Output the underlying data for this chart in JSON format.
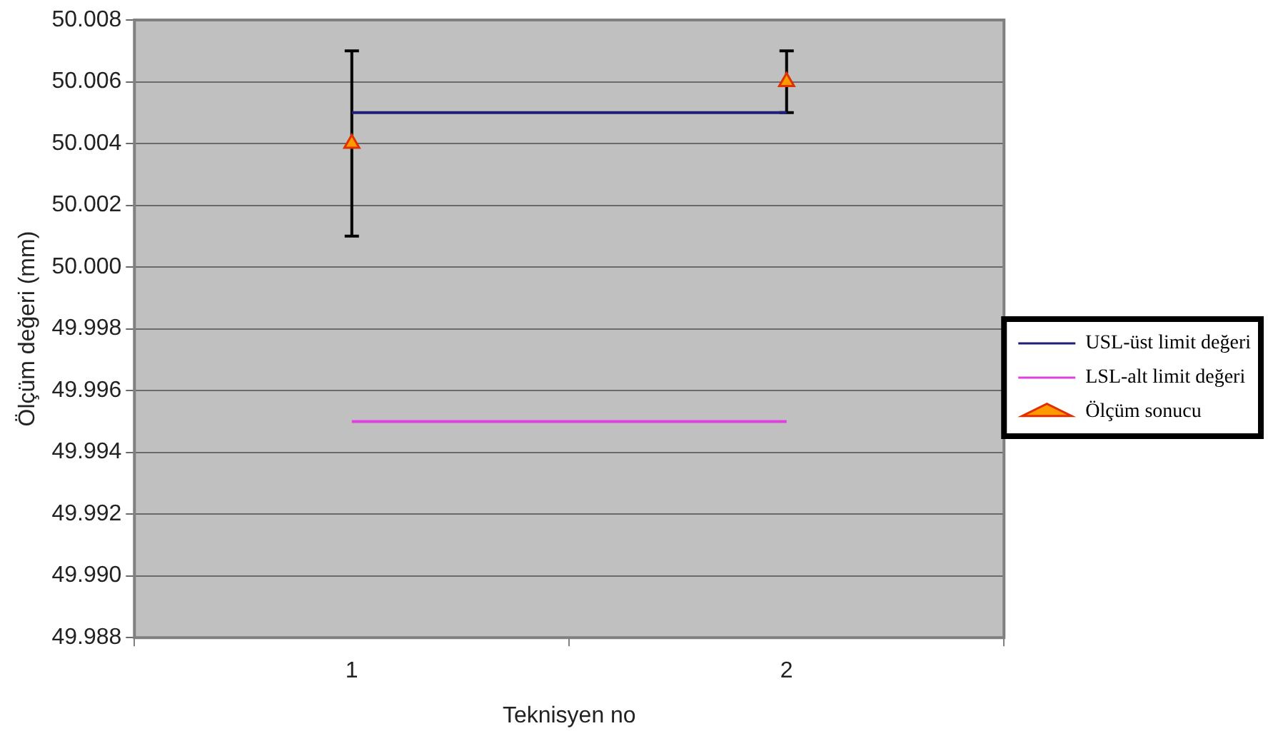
{
  "chart_data": {
    "type": "line",
    "xlabel": "Teknisyen no",
    "ylabel": "Ölçüm değeri (mm)",
    "categories": [
      "1",
      "2"
    ],
    "series": [
      {
        "name": "USL-üst limit değeri",
        "color": "#1f1f7a",
        "marker": "none",
        "values": [
          50.005,
          50.005
        ]
      },
      {
        "name": "LSL-alt limit değeri",
        "color": "#e040e0",
        "marker": "none",
        "values": [
          49.995,
          49.995
        ]
      },
      {
        "name": "Ölçüm sonucu",
        "type": "scatter",
        "color": "#ff9900",
        "marker": "triangle",
        "values": [
          50.004,
          50.006
        ],
        "errors": [
          [
            50.001,
            50.007
          ],
          [
            50.005,
            50.007
          ]
        ]
      }
    ],
    "ylim": [
      49.988,
      50.008
    ],
    "yticks": [
      {
        "value": 49.988,
        "label": "49.988"
      },
      {
        "value": 49.99,
        "label": "49.990"
      },
      {
        "value": 49.992,
        "label": "49.992"
      },
      {
        "value": 49.994,
        "label": "49.994"
      },
      {
        "value": 49.996,
        "label": "49.996"
      },
      {
        "value": 49.998,
        "label": "49.998"
      },
      {
        "value": 50,
        "label": "50.000"
      },
      {
        "value": 50.002,
        "label": "50.002"
      },
      {
        "value": 50.004,
        "label": "50.004"
      },
      {
        "value": 50.006,
        "label": "50.006"
      },
      {
        "value": 50.008,
        "label": "50.008"
      }
    ],
    "grid": "y",
    "legend": "right"
  }
}
